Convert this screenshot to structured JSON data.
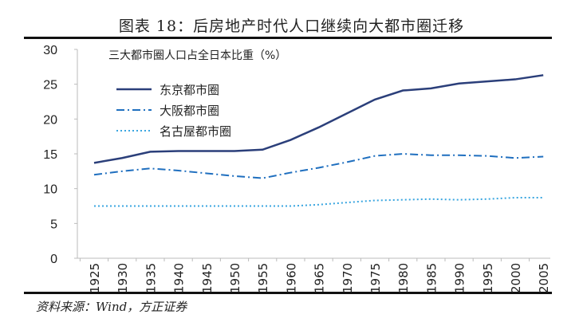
{
  "figure_title": "图表 18：后房地产时代人口继续向大都市圈迁移",
  "source": "资料来源：Wind，方正证券",
  "chart_data": {
    "type": "line",
    "title": "三大都市圈人口占全日本比重（%）",
    "xlabel": "",
    "ylabel": "",
    "ylim": [
      0,
      30
    ],
    "yticks": [
      "0",
      "5",
      "10",
      "15",
      "20",
      "25",
      "30"
    ],
    "categories": [
      "1925",
      "1930",
      "1935",
      "1940",
      "1945",
      "1950",
      "1955",
      "1960",
      "1965",
      "1970",
      "1975",
      "1980",
      "1985",
      "1990",
      "1995",
      "2000",
      "2005"
    ],
    "legend_placement": "top-left",
    "series": [
      {
        "name": "东京都市圈",
        "color": "#2b3f7a",
        "dash": "solid",
        "values": [
          13.7,
          14.4,
          15.3,
          15.4,
          15.4,
          15.4,
          15.6,
          17.0,
          18.8,
          20.8,
          22.8,
          24.1,
          24.4,
          25.1,
          25.4,
          25.7,
          26.3
        ]
      },
      {
        "name": "大阪都市圈",
        "color": "#1f6fbf",
        "dash": "dashdot",
        "values": [
          12.0,
          12.5,
          12.9,
          12.6,
          12.2,
          11.8,
          11.5,
          12.3,
          13.0,
          13.8,
          14.7,
          15.0,
          14.8,
          14.8,
          14.7,
          14.4,
          14.6
        ]
      },
      {
        "name": "名古屋都市圈",
        "color": "#3aa6e0",
        "dash": "dotted",
        "values": [
          7.5,
          7.5,
          7.5,
          7.5,
          7.5,
          7.5,
          7.5,
          7.5,
          7.7,
          8.0,
          8.3,
          8.4,
          8.5,
          8.4,
          8.5,
          8.7,
          8.7
        ]
      }
    ]
  }
}
